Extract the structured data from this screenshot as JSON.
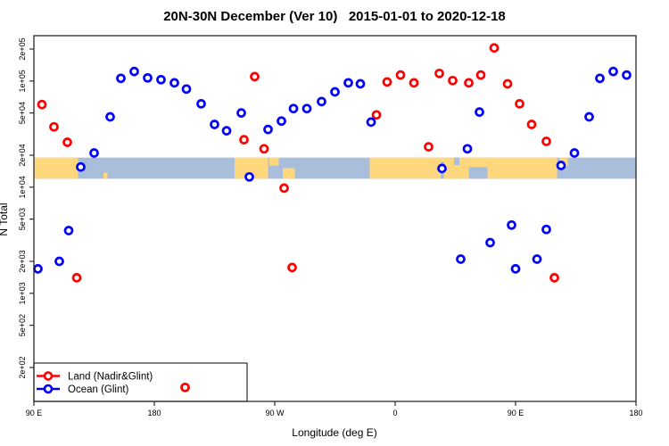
{
  "chart_data": {
    "type": "scatter",
    "title": "20N-30N December (Ver 10)   2015-01-01 to 2020-12-18",
    "xlabel": "Longitude (deg E)",
    "ylabel": "N Total",
    "x_axis": {
      "min": 90,
      "max": 540,
      "ticks": [
        90,
        180,
        270,
        360,
        450,
        540
      ],
      "tick_labels": [
        "90 E",
        "180",
        "90 W",
        "0",
        "90 E",
        "180"
      ]
    },
    "y_axis": {
      "scale": "log",
      "min": 95,
      "max": 267000,
      "ticks": [
        200000,
        100000,
        50000,
        20000,
        10000,
        5000,
        2000,
        1000,
        500,
        200
      ],
      "tick_labels": [
        "2e+05",
        "1e+05",
        "5e+04",
        "2e+04",
        "1e+04",
        "5e+03",
        "2e+03",
        "1e+03",
        "5e+02",
        "2e+02"
      ]
    },
    "grid": "off",
    "legend_position": "bottom-left",
    "series": [
      {
        "name": "Land (Nadir&Glint)",
        "color": "#FF0000",
        "marker": "open-circle",
        "points": [
          [
            96,
            60000
          ],
          [
            105,
            37000
          ],
          [
            115,
            26500
          ],
          [
            122,
            1400
          ],
          [
            203,
            130
          ],
          [
            247,
            28000
          ],
          [
            255,
            110000
          ],
          [
            262,
            23000
          ],
          [
            277,
            9800
          ],
          [
            283,
            1750
          ],
          [
            346,
            48000
          ],
          [
            354,
            98000
          ],
          [
            364,
            114000
          ],
          [
            374,
            96000
          ],
          [
            385,
            24000
          ],
          [
            393,
            118000
          ],
          [
            403,
            101000
          ],
          [
            415,
            96000
          ],
          [
            424,
            114000
          ],
          [
            434,
            205000
          ],
          [
            444,
            94000
          ],
          [
            453,
            61000
          ],
          [
            462,
            39000
          ],
          [
            473,
            27000
          ],
          [
            479,
            1400
          ]
        ]
      },
      {
        "name": "Ocean (Glint)",
        "color": "#0000FF",
        "marker": "open-circle",
        "points": [
          [
            93,
            1700
          ],
          [
            109,
            2000
          ],
          [
            116,
            3900
          ],
          [
            125,
            15500
          ],
          [
            135,
            21000
          ],
          [
            147,
            46000
          ],
          [
            155,
            106000
          ],
          [
            165,
            123000
          ],
          [
            175,
            107000
          ],
          [
            185,
            103000
          ],
          [
            195,
            96000
          ],
          [
            204,
            84000
          ],
          [
            215,
            61000
          ],
          [
            225,
            39000
          ],
          [
            234,
            34000
          ],
          [
            245,
            50000
          ],
          [
            251,
            12500
          ],
          [
            265,
            35000
          ],
          [
            275,
            42000
          ],
          [
            284,
            55000
          ],
          [
            294,
            55000
          ],
          [
            305,
            64000
          ],
          [
            315,
            79000
          ],
          [
            325,
            96000
          ],
          [
            334,
            94000
          ],
          [
            342,
            41000
          ],
          [
            395,
            15000
          ],
          [
            409,
            2100
          ],
          [
            414,
            23000
          ],
          [
            423,
            51000
          ],
          [
            431,
            3000
          ],
          [
            447,
            4400
          ],
          [
            450,
            1700
          ],
          [
            466,
            2100
          ],
          [
            473,
            4000
          ],
          [
            484,
            16000
          ],
          [
            494,
            21000
          ],
          [
            505,
            46000
          ],
          [
            513,
            106000
          ],
          [
            523,
            123000
          ],
          [
            533,
            114000
          ]
        ]
      }
    ],
    "map_band": {
      "description": "world coastline strip for 20N-30N drawn across the plot",
      "value_top": 19000,
      "value_bottom": 12000,
      "ocean_color": "#A9BEDB",
      "land_color": "#FFD87D",
      "land_segments": [
        {
          "from": 90,
          "to": 123,
          "top": 0,
          "height": 1
        },
        {
          "from": 142,
          "to": 145,
          "top": 0.72,
          "height": 0.28
        },
        {
          "from": 240,
          "to": 265,
          "top": 0,
          "height": 1
        },
        {
          "from": 266,
          "to": 273,
          "top": 0,
          "height": 0.38
        },
        {
          "from": 276,
          "to": 285,
          "top": 0.5,
          "height": 0.5
        },
        {
          "from": 341,
          "to": 481,
          "top": 0,
          "height": 1
        },
        {
          "from": 483,
          "to": 489,
          "top": 0,
          "height": 0.4
        }
      ],
      "ocean_cutouts": [
        {
          "from": 394,
          "to": 396.5,
          "top": 0.2,
          "height": 0.8
        },
        {
          "from": 404,
          "to": 408,
          "top": 0,
          "height": 0.35
        },
        {
          "from": 415,
          "to": 429,
          "top": 0.45,
          "height": 0.55
        }
      ]
    },
    "legend": {
      "entries": [
        {
          "label": "Land (Nadir&Glint)",
          "color": "#FF0000"
        },
        {
          "label": "Ocean (Glint)",
          "color": "#0000FF"
        }
      ]
    }
  }
}
